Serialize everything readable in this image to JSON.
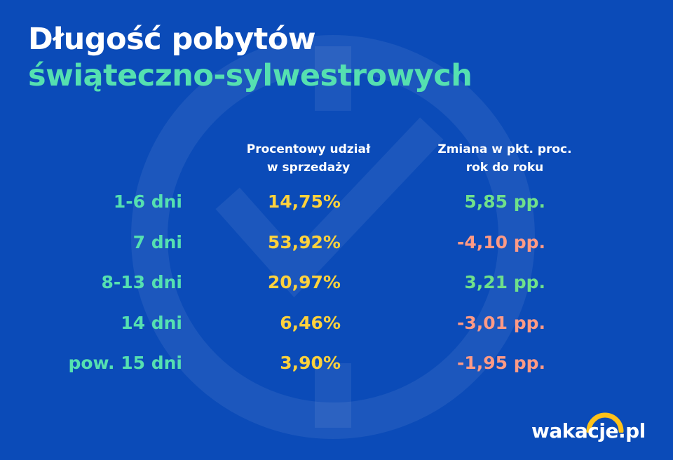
{
  "title": {
    "line1": "Długość pobytów",
    "line2": "świąteczno-sylwestrowych"
  },
  "columns": {
    "share": [
      "Procentowy udział",
      "w sprzedaży"
    ],
    "change": [
      "Zmiana w pkt. proc.",
      "rok do roku"
    ]
  },
  "rows": [
    {
      "label": "1-6 dni",
      "share": "14,75%",
      "change": "5,85 pp."
    },
    {
      "label": "7 dni",
      "share": "53,92%",
      "change": "-4,10 pp."
    },
    {
      "label": "8-13 dni",
      "share": "20,97%",
      "change": "3,21 pp."
    },
    {
      "label": "14 dni",
      "share": "6,46%",
      "change": "-3,01 pp."
    },
    {
      "label": "pow. 15 dni",
      "share": "3,90%",
      "change": "-1,95 pp."
    }
  ],
  "logo": {
    "text": "wakacje.pl"
  },
  "colors": {
    "background": "#0b4bb8",
    "title_accent": "#55e0b0",
    "share_value": "#ffd23c",
    "positive": "#6fe08a",
    "negative": "#ff9a85",
    "logo_arc": "#ffc21a"
  },
  "chart_data": {
    "type": "table",
    "title": "Długość pobytów świąteczno-sylwestrowych",
    "columns": [
      "",
      "Procentowy udział w sprzedaży",
      "Zmiana w pkt. proc. rok do roku"
    ],
    "categories": [
      "1-6 dni",
      "7 dni",
      "8-13 dni",
      "14 dni",
      "pow. 15 dni"
    ],
    "series": [
      {
        "name": "Procentowy udział w sprzedaży",
        "values": [
          14.75,
          53.92,
          20.97,
          6.46,
          3.9
        ]
      },
      {
        "name": "Zmiana w pkt. proc. rok do roku",
        "values": [
          5.85,
          -4.1,
          3.21,
          -3.01,
          -1.95
        ]
      }
    ]
  }
}
